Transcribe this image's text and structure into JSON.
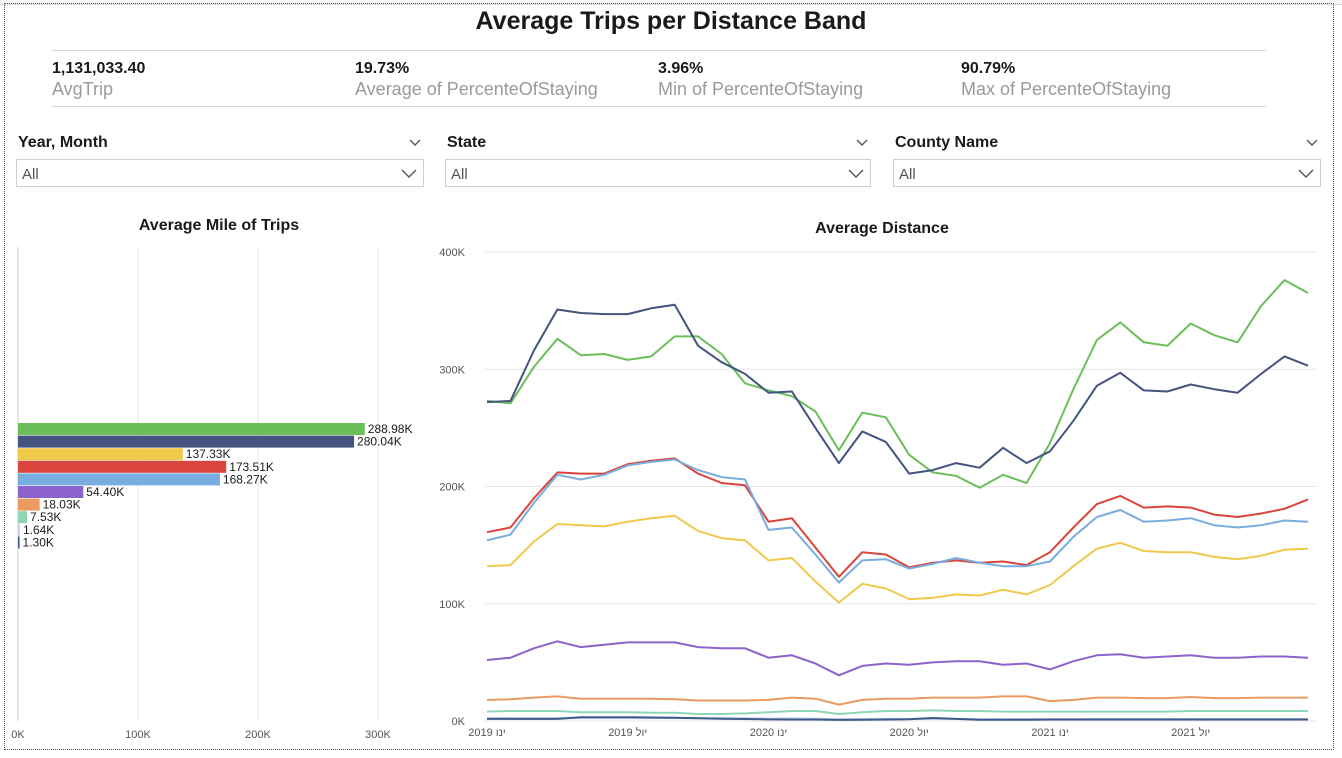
{
  "page_title": "Average Trips per Distance Band",
  "kpis": [
    {
      "value": "1,131,033.40",
      "label": "AvgTrip"
    },
    {
      "value": "19.73%",
      "label": "Average of PercenteOfStaying"
    },
    {
      "value": "3.96%",
      "label": "Min of PercenteOfStaying"
    },
    {
      "value": "90.79%",
      "label": "Max of PercenteOfStaying"
    }
  ],
  "slicers": [
    {
      "title": "Year, Month",
      "value": "All"
    },
    {
      "title": "State",
      "value": "All"
    },
    {
      "title": "County Name",
      "value": "All"
    }
  ],
  "icons": {
    "slicer_header": "chevron-down-icon",
    "slicer_dropdown": "chevron-down-icon"
  },
  "chart_data": [
    {
      "type": "bar",
      "orientation": "horizontal",
      "title": "Average Mile of Trips",
      "xlim": [
        0,
        320000
      ],
      "x_ticks": [
        "0K",
        "100K",
        "200K",
        "300K"
      ],
      "grid": true,
      "values": [
        288980,
        280040,
        137330,
        173510,
        168270,
        54400,
        18030,
        7530,
        1640,
        1300
      ],
      "labels": [
        "288.98K",
        "280.04K",
        "137.33K",
        "173.51K",
        "168.27K",
        "54.40K",
        "18.03K",
        "7.53K",
        "1.64K",
        "1.30K"
      ],
      "colors": [
        "#6bbf59",
        "#44547f",
        "#f0c84a",
        "#d9453c",
        "#79ade0",
        "#8c63cc",
        "#eb9a62",
        "#8fd7b4",
        "#c4d0ec",
        "#3d5a8a"
      ]
    },
    {
      "type": "line",
      "title": "Average Distance",
      "ylim": [
        0,
        400000
      ],
      "y_ticks": [
        "0K",
        "100K",
        "200K",
        "300K",
        "400K"
      ],
      "x_ticks": [
        "ינו 2019",
        "יול 2019",
        "ינו 2020",
        "יול 2020",
        "ינו 2021",
        "יול 2021"
      ],
      "x": [
        "2019-01",
        "2019-02",
        "2019-03",
        "2019-04",
        "2019-05",
        "2019-06",
        "2019-07",
        "2019-08",
        "2019-09",
        "2019-10",
        "2019-11",
        "2019-12",
        "2020-01",
        "2020-02",
        "2020-03",
        "2020-04",
        "2020-05",
        "2020-06",
        "2020-07",
        "2020-08",
        "2020-09",
        "2020-10",
        "2020-11",
        "2020-12",
        "2021-01",
        "2021-02",
        "2021-03",
        "2021-04",
        "2021-05",
        "2021-06",
        "2021-07",
        "2021-08",
        "2021-09",
        "2021-10",
        "2021-11",
        "2021-12"
      ],
      "grid": true,
      "series": [
        {
          "color": "#6bbf59",
          "values": [
            273000,
            271000,
            302000,
            326000,
            312000,
            313000,
            308000,
            311000,
            328000,
            328000,
            313000,
            288000,
            282000,
            277000,
            264000,
            231000,
            263000,
            259000,
            227000,
            212000,
            209000,
            199000,
            210000,
            203000,
            237000,
            283000,
            325000,
            340000,
            323000,
            320000,
            339000,
            329000,
            323000,
            354000,
            376000,
            365000
          ]
        },
        {
          "color": "#44547f",
          "values": [
            272000,
            273000,
            316000,
            351000,
            348000,
            347000,
            347000,
            352000,
            355000,
            320000,
            306000,
            296000,
            280000,
            281000,
            250000,
            220000,
            247000,
            238000,
            211000,
            214000,
            220000,
            216000,
            233000,
            220000,
            230000,
            256000,
            286000,
            297000,
            282000,
            281000,
            287000,
            283000,
            280000,
            296000,
            311000,
            303000
          ]
        },
        {
          "color": "#d9453c",
          "values": [
            161000,
            165000,
            190000,
            212000,
            211000,
            211000,
            219000,
            222000,
            224000,
            211000,
            203000,
            201000,
            170000,
            173000,
            148000,
            123000,
            144000,
            142000,
            131000,
            135000,
            137000,
            135000,
            136000,
            133000,
            144000,
            165000,
            185000,
            192000,
            182000,
            183000,
            182000,
            176000,
            174000,
            177000,
            181000,
            189000
          ]
        },
        {
          "color": "#79ade0",
          "values": [
            154000,
            159000,
            186000,
            210000,
            206000,
            210000,
            218000,
            221000,
            223000,
            214000,
            208000,
            206000,
            163000,
            165000,
            142000,
            118000,
            137000,
            138000,
            130000,
            134000,
            139000,
            135000,
            132000,
            132000,
            136000,
            157000,
            174000,
            180000,
            170000,
            171000,
            173000,
            167000,
            165000,
            167000,
            171000,
            170000
          ]
        },
        {
          "color": "#f0c84a",
          "values": [
            132000,
            133000,
            153000,
            168000,
            167000,
            166000,
            170000,
            173000,
            175000,
            162000,
            156000,
            154000,
            137000,
            139000,
            119000,
            101000,
            117000,
            113000,
            104000,
            105000,
            108000,
            107000,
            112000,
            108000,
            116000,
            132000,
            147000,
            152000,
            145000,
            144000,
            144000,
            140000,
            138000,
            141000,
            146000,
            147000
          ]
        },
        {
          "color": "#8c63cc",
          "values": [
            52000,
            54000,
            62000,
            68000,
            63000,
            65000,
            67000,
            67000,
            67000,
            63000,
            62000,
            62000,
            54000,
            56000,
            49000,
            39000,
            47000,
            49000,
            48000,
            50000,
            51000,
            51000,
            48000,
            49000,
            44000,
            51000,
            56000,
            57000,
            54000,
            55000,
            56000,
            54000,
            54000,
            55000,
            55000,
            54000
          ]
        },
        {
          "color": "#eb9a62",
          "values": [
            18000,
            18500,
            20000,
            21000,
            19000,
            19000,
            19000,
            19000,
            18500,
            17500,
            17500,
            17500,
            18000,
            20000,
            19000,
            14000,
            18000,
            19000,
            19000,
            20000,
            20000,
            20000,
            21000,
            21000,
            17000,
            18000,
            20000,
            20000,
            19500,
            19500,
            20500,
            19500,
            19500,
            20000,
            20000,
            20000
          ]
        },
        {
          "color": "#8fd7b4",
          "values": [
            8000,
            8500,
            8500,
            8500,
            7500,
            7500,
            7500,
            7000,
            7000,
            6000,
            6000,
            6500,
            7500,
            8500,
            8500,
            6000,
            7500,
            8500,
            8500,
            9000,
            8500,
            8500,
            8000,
            8000,
            8000,
            8000,
            8000,
            8000,
            8000,
            8000,
            8500,
            8500,
            8500,
            8500,
            8500,
            8500
          ]
        },
        {
          "color": "#c4d0ec",
          "values": [
            2500,
            2500,
            2500,
            2500,
            2500,
            2500,
            2500,
            2500,
            2500,
            2300,
            2300,
            2300,
            2000,
            2200,
            2000,
            1500,
            1800,
            1800,
            1800,
            1800,
            1700,
            1600,
            1700,
            1700,
            1600,
            1600,
            1700,
            1700,
            1700,
            1700,
            1700,
            1700,
            1700,
            1700,
            1700,
            1700
          ]
        },
        {
          "color": "#3d5a8a",
          "values": [
            1800,
            1800,
            1800,
            1800,
            3200,
            3200,
            3200,
            3000,
            2700,
            2300,
            1900,
            1700,
            1400,
            1300,
            1300,
            900,
            1100,
            1300,
            1500,
            2600,
            1800,
            1000,
            1000,
            1100,
            1300,
            1300,
            1300,
            1300,
            1300,
            1300,
            1300,
            1300,
            1300,
            1300,
            1300,
            1300
          ]
        }
      ]
    }
  ]
}
